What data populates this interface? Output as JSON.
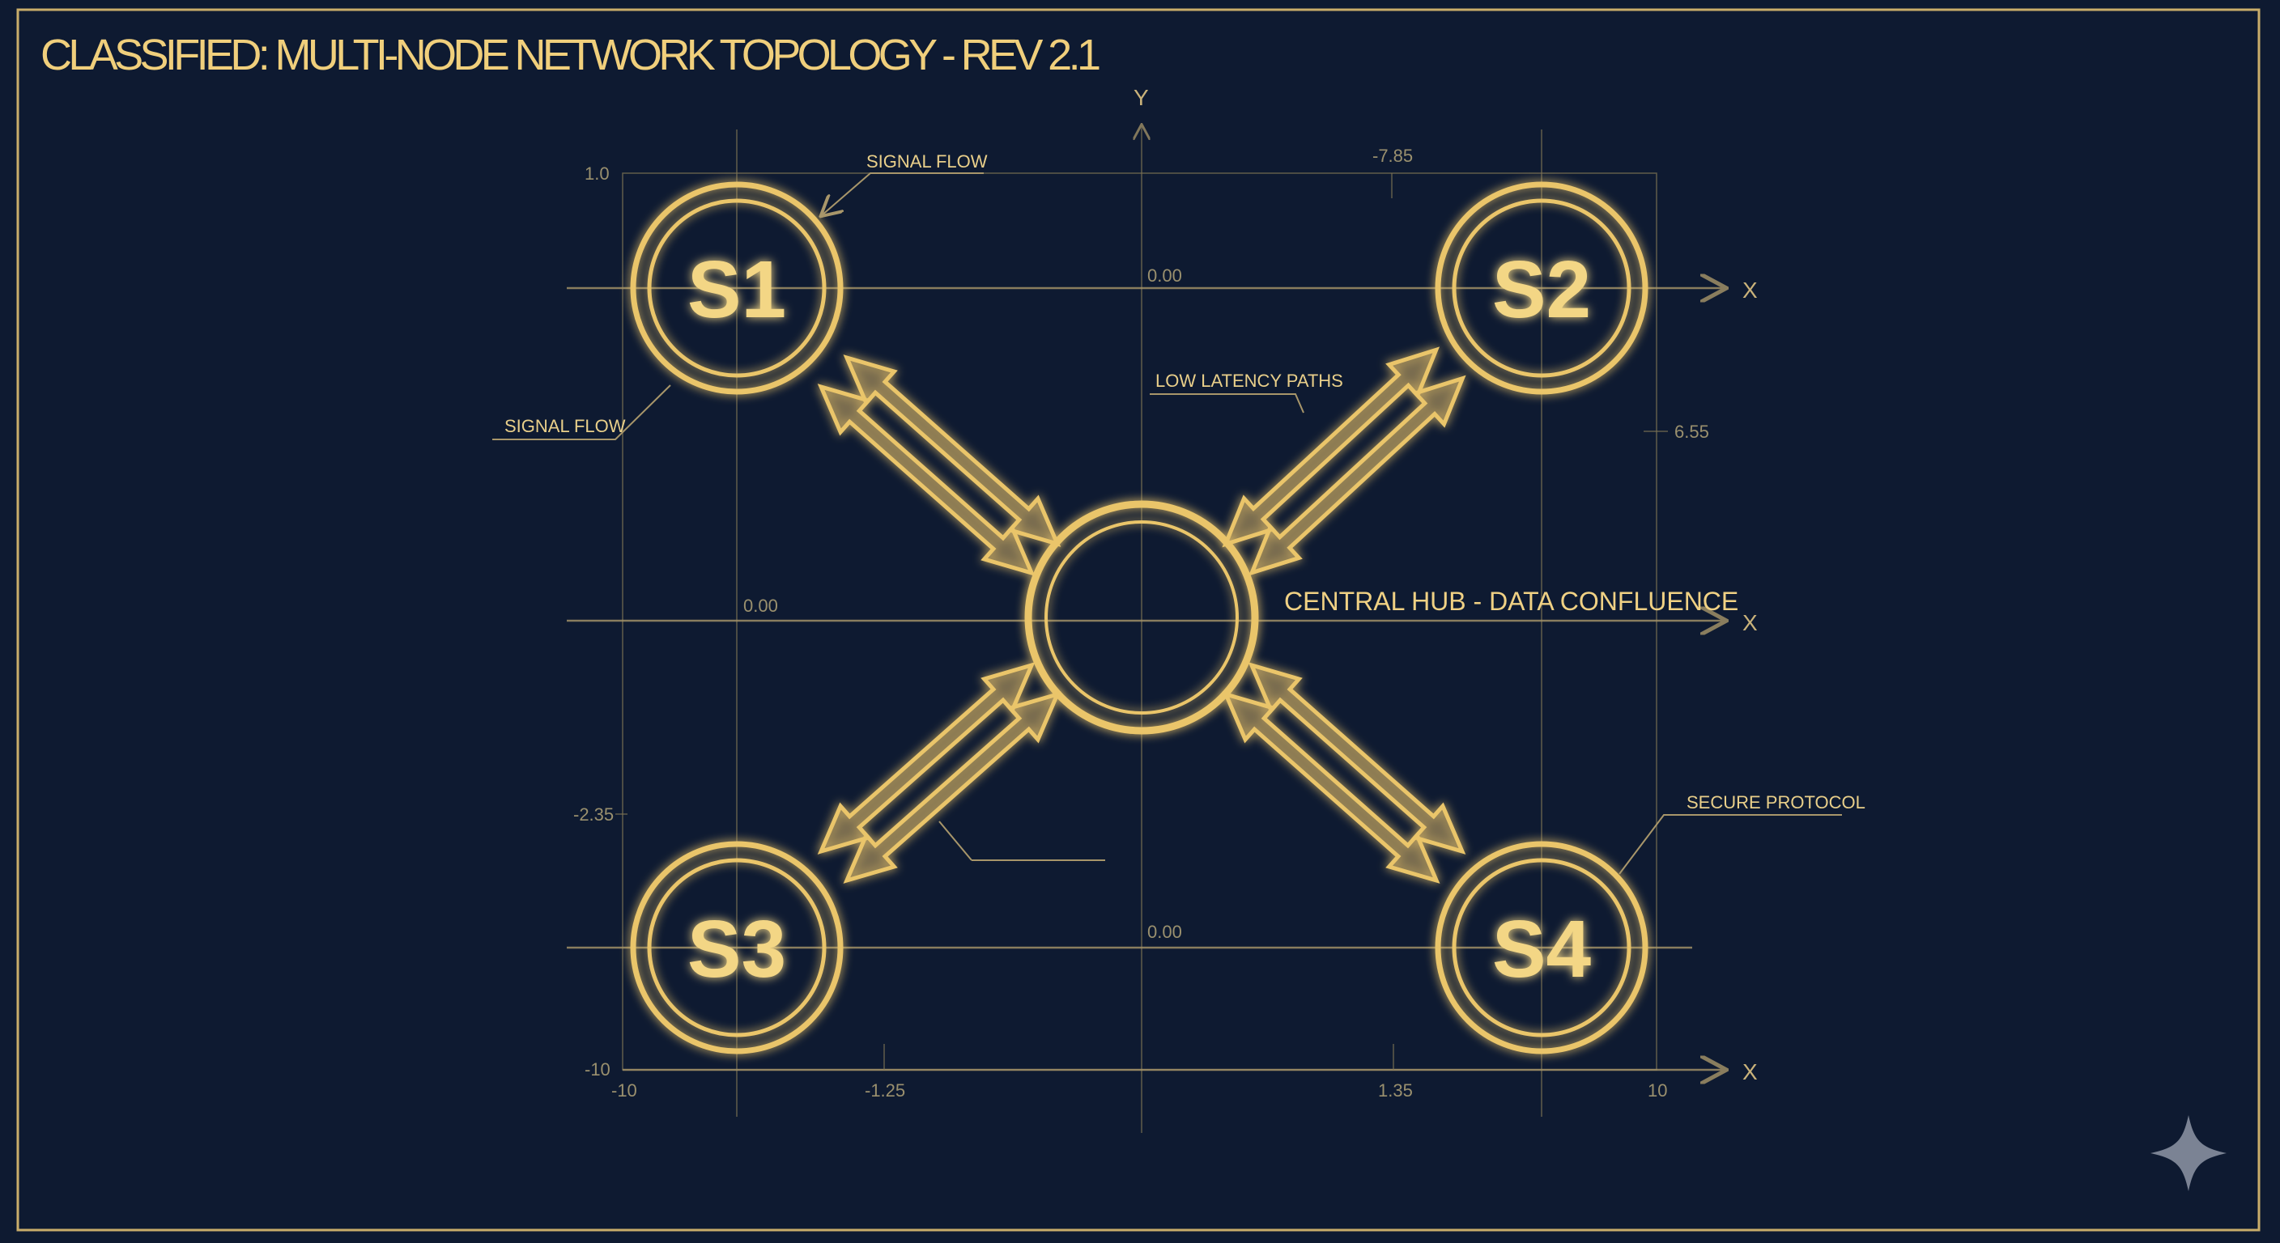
{
  "title": "CLASSIFIED: MULTI-NODE NETWORK TOPOLOGY - REV 2.1",
  "axes": {
    "y_label": "Y",
    "x_label": "X"
  },
  "ticks": {
    "top_left": "1.0",
    "top": "-7.85",
    "upper_center": "0.00",
    "right": "6.55",
    "middle_left": "0.00",
    "lower_left": "-2.35",
    "lower_center": "0.00",
    "bottom_left_y": "-10",
    "bottom": [
      "-10",
      "-1.25",
      "1.35",
      "10"
    ]
  },
  "nodes": [
    {
      "id": "S1",
      "label": "S1"
    },
    {
      "id": "S2",
      "label": "S2"
    },
    {
      "id": "S3",
      "label": "S3"
    },
    {
      "id": "S4",
      "label": "S4"
    }
  ],
  "hub": {
    "label": "CENTRAL HUB - DATA CONFLUENCE"
  },
  "annotations": {
    "signal_flow_top": "SIGNAL FLOW",
    "signal_flow_left": "SIGNAL FLOW",
    "low_latency": "LOW LATENCY PATHS",
    "secure_protocol": "SECURE PROTOCOL"
  },
  "colors": {
    "background": "#0e1a31",
    "accent": "#eac56a",
    "grid": "#7d7354"
  },
  "icons": {
    "corner": "sparkle-icon"
  }
}
